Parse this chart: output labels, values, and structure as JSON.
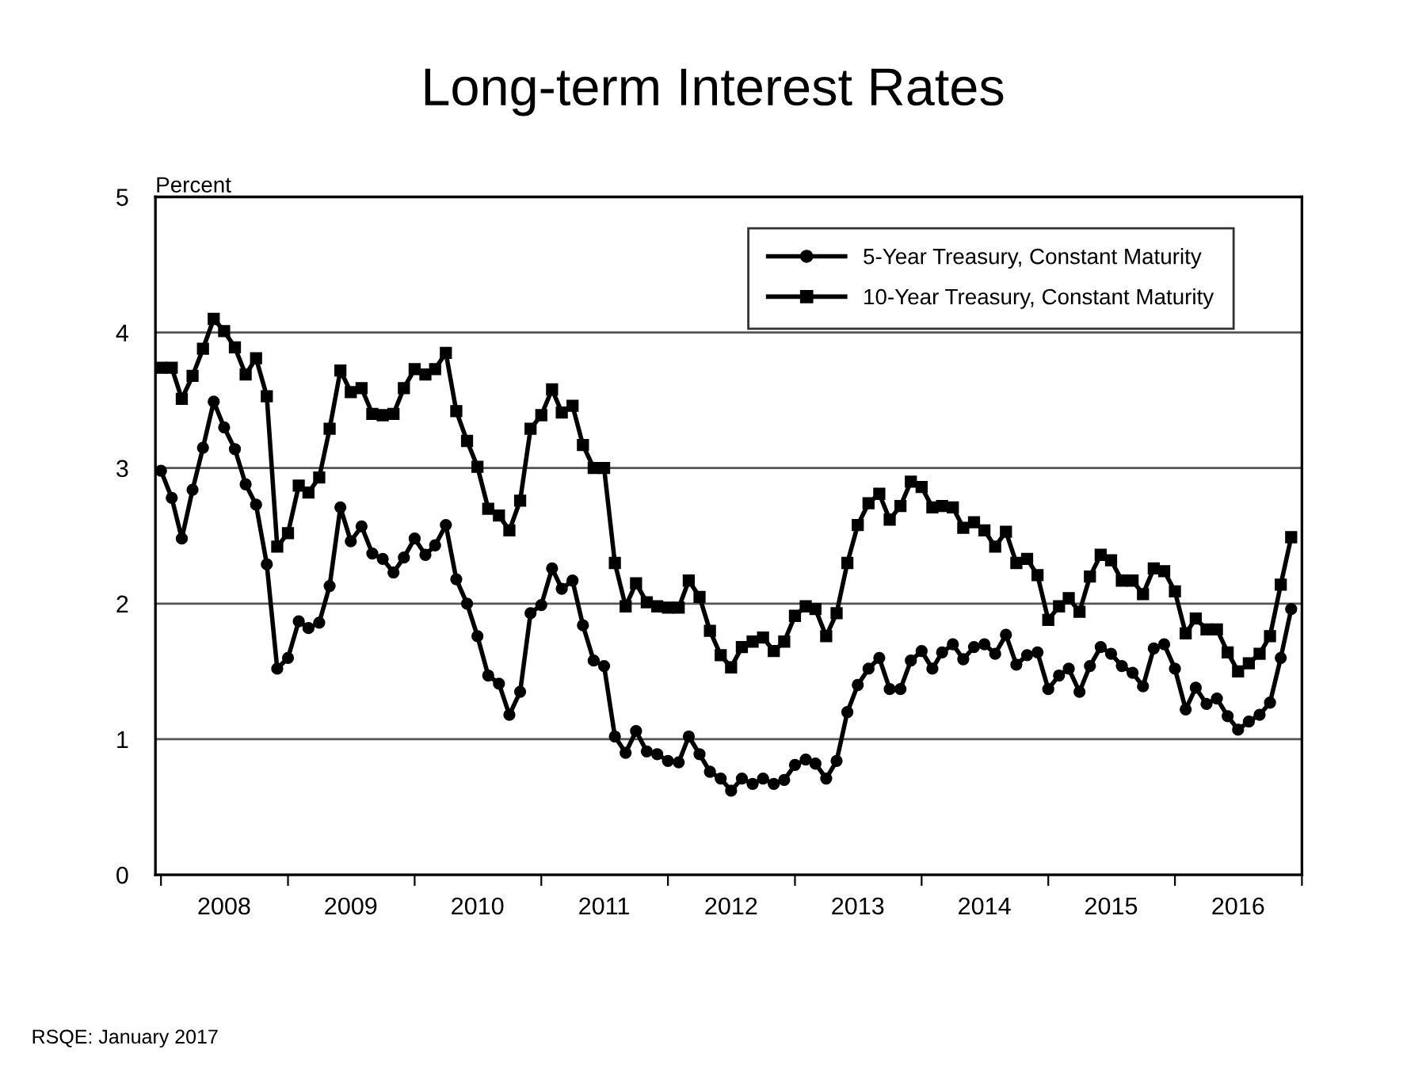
{
  "chart_data": {
    "type": "line",
    "title": "Long-term Interest Rates",
    "ylabel": "Percent",
    "x": [
      "2008-01",
      "2008-02",
      "2008-03",
      "2008-04",
      "2008-05",
      "2008-06",
      "2008-07",
      "2008-08",
      "2008-09",
      "2008-10",
      "2008-11",
      "2008-12",
      "2009-01",
      "2009-02",
      "2009-03",
      "2009-04",
      "2009-05",
      "2009-06",
      "2009-07",
      "2009-08",
      "2009-09",
      "2009-10",
      "2009-11",
      "2009-12",
      "2010-01",
      "2010-02",
      "2010-03",
      "2010-04",
      "2010-05",
      "2010-06",
      "2010-07",
      "2010-08",
      "2010-09",
      "2010-10",
      "2010-11",
      "2010-12",
      "2011-01",
      "2011-02",
      "2011-03",
      "2011-04",
      "2011-05",
      "2011-06",
      "2011-07",
      "2011-08",
      "2011-09",
      "2011-10",
      "2011-11",
      "2011-12",
      "2012-01",
      "2012-02",
      "2012-03",
      "2012-04",
      "2012-05",
      "2012-06",
      "2012-07",
      "2012-08",
      "2012-09",
      "2012-10",
      "2012-11",
      "2012-12",
      "2013-01",
      "2013-02",
      "2013-03",
      "2013-04",
      "2013-05",
      "2013-06",
      "2013-07",
      "2013-08",
      "2013-09",
      "2013-10",
      "2013-11",
      "2013-12",
      "2014-01",
      "2014-02",
      "2014-03",
      "2014-04",
      "2014-05",
      "2014-06",
      "2014-07",
      "2014-08",
      "2014-09",
      "2014-10",
      "2014-11",
      "2014-12",
      "2015-01",
      "2015-02",
      "2015-03",
      "2015-04",
      "2015-05",
      "2015-06",
      "2015-07",
      "2015-08",
      "2015-09",
      "2015-10",
      "2015-11",
      "2015-12",
      "2016-01",
      "2016-02",
      "2016-03",
      "2016-04",
      "2016-05",
      "2016-06",
      "2016-07",
      "2016-08",
      "2016-09",
      "2016-10",
      "2016-11",
      "2016-12"
    ],
    "series": [
      {
        "name": "5-Year Treasury, Constant Maturity",
        "color": "#000000",
        "marker": "circle",
        "values": [
          2.98,
          2.78,
          2.48,
          2.84,
          3.15,
          3.49,
          3.3,
          3.14,
          2.88,
          2.73,
          2.29,
          1.52,
          1.6,
          1.87,
          1.82,
          1.86,
          2.13,
          2.71,
          2.46,
          2.57,
          2.37,
          2.33,
          2.23,
          2.34,
          2.48,
          2.36,
          2.43,
          2.58,
          2.18,
          2.0,
          1.76,
          1.47,
          1.41,
          1.18,
          1.35,
          1.93,
          1.99,
          2.26,
          2.11,
          2.17,
          1.84,
          1.58,
          1.54,
          1.02,
          0.9,
          1.06,
          0.91,
          0.89,
          0.84,
          0.83,
          1.02,
          0.89,
          0.76,
          0.71,
          0.62,
          0.71,
          0.67,
          0.71,
          0.67,
          0.7,
          0.81,
          0.85,
          0.82,
          0.71,
          0.84,
          1.2,
          1.4,
          1.52,
          1.6,
          1.37,
          1.37,
          1.58,
          1.65,
          1.52,
          1.64,
          1.7,
          1.59,
          1.68,
          1.7,
          1.63,
          1.77,
          1.55,
          1.62,
          1.64,
          1.37,
          1.47,
          1.52,
          1.35,
          1.54,
          1.68,
          1.63,
          1.54,
          1.49,
          1.39,
          1.67,
          1.7,
          1.52,
          1.22,
          1.38,
          1.26,
          1.3,
          1.17,
          1.07,
          1.13,
          1.18,
          1.27,
          1.6,
          1.96
        ]
      },
      {
        "name": "10-Year Treasury, Constant Maturity",
        "color": "#000000",
        "marker": "square",
        "values": [
          3.74,
          3.74,
          3.51,
          3.68,
          3.88,
          4.1,
          4.01,
          3.89,
          3.69,
          3.81,
          3.53,
          2.42,
          2.52,
          2.87,
          2.82,
          2.93,
          3.29,
          3.72,
          3.56,
          3.59,
          3.4,
          3.39,
          3.4,
          3.59,
          3.73,
          3.69,
          3.73,
          3.85,
          3.42,
          3.2,
          3.01,
          2.7,
          2.65,
          2.54,
          2.76,
          3.29,
          3.39,
          3.58,
          3.41,
          3.46,
          3.17,
          3.0,
          3.0,
          2.3,
          1.98,
          2.15,
          2.01,
          1.98,
          1.97,
          1.97,
          2.17,
          2.05,
          1.8,
          1.62,
          1.53,
          1.68,
          1.72,
          1.75,
          1.65,
          1.72,
          1.91,
          1.98,
          1.96,
          1.76,
          1.93,
          2.3,
          2.58,
          2.74,
          2.81,
          2.62,
          2.72,
          2.9,
          2.86,
          2.71,
          2.72,
          2.71,
          2.56,
          2.6,
          2.54,
          2.42,
          2.53,
          2.3,
          2.33,
          2.21,
          1.88,
          1.98,
          2.04,
          1.94,
          2.2,
          2.36,
          2.32,
          2.17,
          2.17,
          2.07,
          2.26,
          2.24,
          2.09,
          1.78,
          1.89,
          1.81,
          1.81,
          1.64,
          1.5,
          1.56,
          1.63,
          1.76,
          2.14,
          2.49
        ]
      }
    ],
    "xlim": [
      "2007-12-16",
      "2017-01-01"
    ],
    "xticks": [
      {
        "value": "2008-01-01",
        "label": null
      },
      {
        "value": "2008-07-01",
        "label": "2008"
      },
      {
        "value": "2009-01-01",
        "label": null
      },
      {
        "value": "2009-07-01",
        "label": "2009"
      },
      {
        "value": "2010-01-01",
        "label": null
      },
      {
        "value": "2010-07-01",
        "label": "2010"
      },
      {
        "value": "2011-01-01",
        "label": null
      },
      {
        "value": "2011-07-01",
        "label": "2011"
      },
      {
        "value": "2012-01-01",
        "label": null
      },
      {
        "value": "2012-07-01",
        "label": "2012"
      },
      {
        "value": "2013-01-01",
        "label": null
      },
      {
        "value": "2013-07-01",
        "label": "2013"
      },
      {
        "value": "2014-01-01",
        "label": null
      },
      {
        "value": "2014-07-01",
        "label": "2014"
      },
      {
        "value": "2015-01-01",
        "label": null
      },
      {
        "value": "2015-07-01",
        "label": "2015"
      },
      {
        "value": "2016-01-01",
        "label": null
      },
      {
        "value": "2016-07-01",
        "label": "2016"
      },
      {
        "value": "2017-01-01",
        "label": null
      }
    ],
    "ylim": [
      0,
      5
    ],
    "yticks": [
      0,
      1,
      2,
      3,
      4,
      5
    ],
    "grid": "y",
    "legend": "top right",
    "line_style": "solid",
    "annotations": [
      "RSQE: January 2017"
    ]
  }
}
